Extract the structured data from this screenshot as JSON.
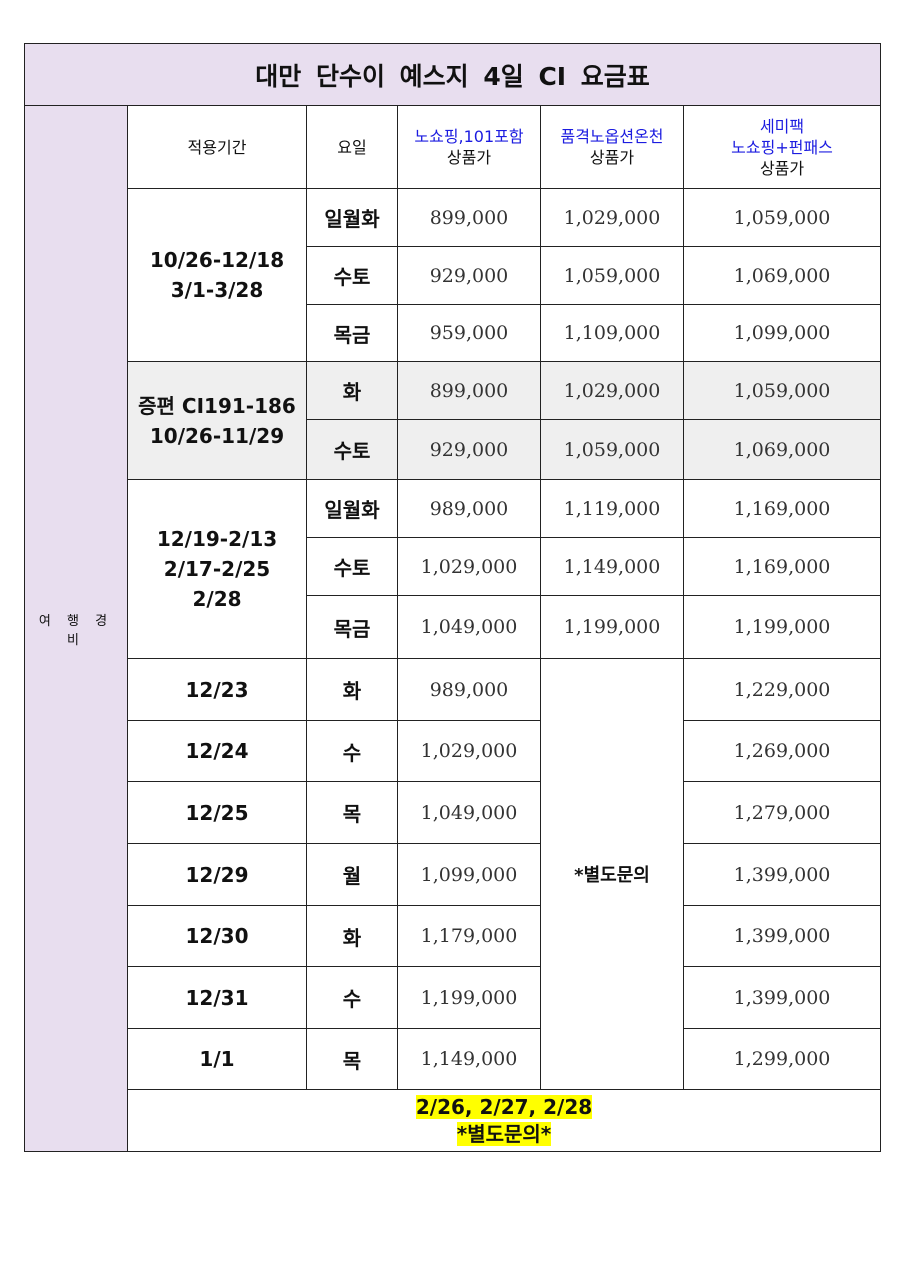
{
  "title": "대만 단수이 예스지 4일 CI 요금표",
  "side_label": "여 행 경 비",
  "headers": {
    "period": "적용기간",
    "day": "요일",
    "p1_name": "노쇼핑,101포함",
    "p1_sub": "상품가",
    "p2_name": "품격노옵션온천",
    "p2_sub": "상품가",
    "p3_name1": "세미팩",
    "p3_name2": "노쇼핑+펀패스",
    "p3_sub": "상품가"
  },
  "group1": {
    "period1": "10/26-12/18",
    "period2": "3/1-3/28",
    "rows": [
      {
        "day": "일월화",
        "p1": "899,000",
        "p2": "1,029,000",
        "p3": "1,059,000"
      },
      {
        "day": "수토",
        "p1": "929,000",
        "p2": "1,059,000",
        "p3": "1,069,000"
      },
      {
        "day": "목금",
        "p1": "959,000",
        "p2": "1,109,000",
        "p3": "1,099,000"
      }
    ]
  },
  "group2": {
    "period1": "증편 CI191-186",
    "period2": "10/26-11/29",
    "rows": [
      {
        "day": "화",
        "p1": "899,000",
        "p2": "1,029,000",
        "p3": "1,059,000"
      },
      {
        "day": "수토",
        "p1": "929,000",
        "p2": "1,059,000",
        "p3": "1,069,000"
      }
    ]
  },
  "group3": {
    "period1": "12/19-2/13",
    "period2": "2/17-2/25",
    "period3": "2/28",
    "rows": [
      {
        "day": "일월화",
        "p1": "989,000",
        "p2": "1,119,000",
        "p3": "1,169,000"
      },
      {
        "day": "수토",
        "p1": "1,029,000",
        "p2": "1,149,000",
        "p3": "1,169,000"
      },
      {
        "day": "목금",
        "p1": "1,049,000",
        "p2": "1,199,000",
        "p3": "1,199,000"
      }
    ]
  },
  "group4": {
    "inquiry": "*별도문의",
    "rows": [
      {
        "date": "12/23",
        "day": "화",
        "p1": "989,000",
        "p3": "1,229,000"
      },
      {
        "date": "12/24",
        "day": "수",
        "p1": "1,029,000",
        "p3": "1,269,000"
      },
      {
        "date": "12/25",
        "day": "목",
        "p1": "1,049,000",
        "p3": "1,279,000"
      },
      {
        "date": "12/29",
        "day": "월",
        "p1": "1,099,000",
        "p3": "1,399,000"
      },
      {
        "date": "12/30",
        "day": "화",
        "p1": "1,179,000",
        "p3": "1,399,000"
      },
      {
        "date": "12/31",
        "day": "수",
        "p1": "1,199,000",
        "p3": "1,399,000"
      },
      {
        "date": "1/1",
        "day": "목",
        "p1": "1,149,000",
        "p3": "1,299,000"
      }
    ]
  },
  "footer": {
    "dates": "2/26, 2/27, 2/28",
    "note": "*별도문의*"
  },
  "colors": {
    "header_bg": "#e8deef",
    "product_name": "#1c1ce0",
    "highlight": "#ffff00",
    "group2_bg": "#efefef"
  }
}
